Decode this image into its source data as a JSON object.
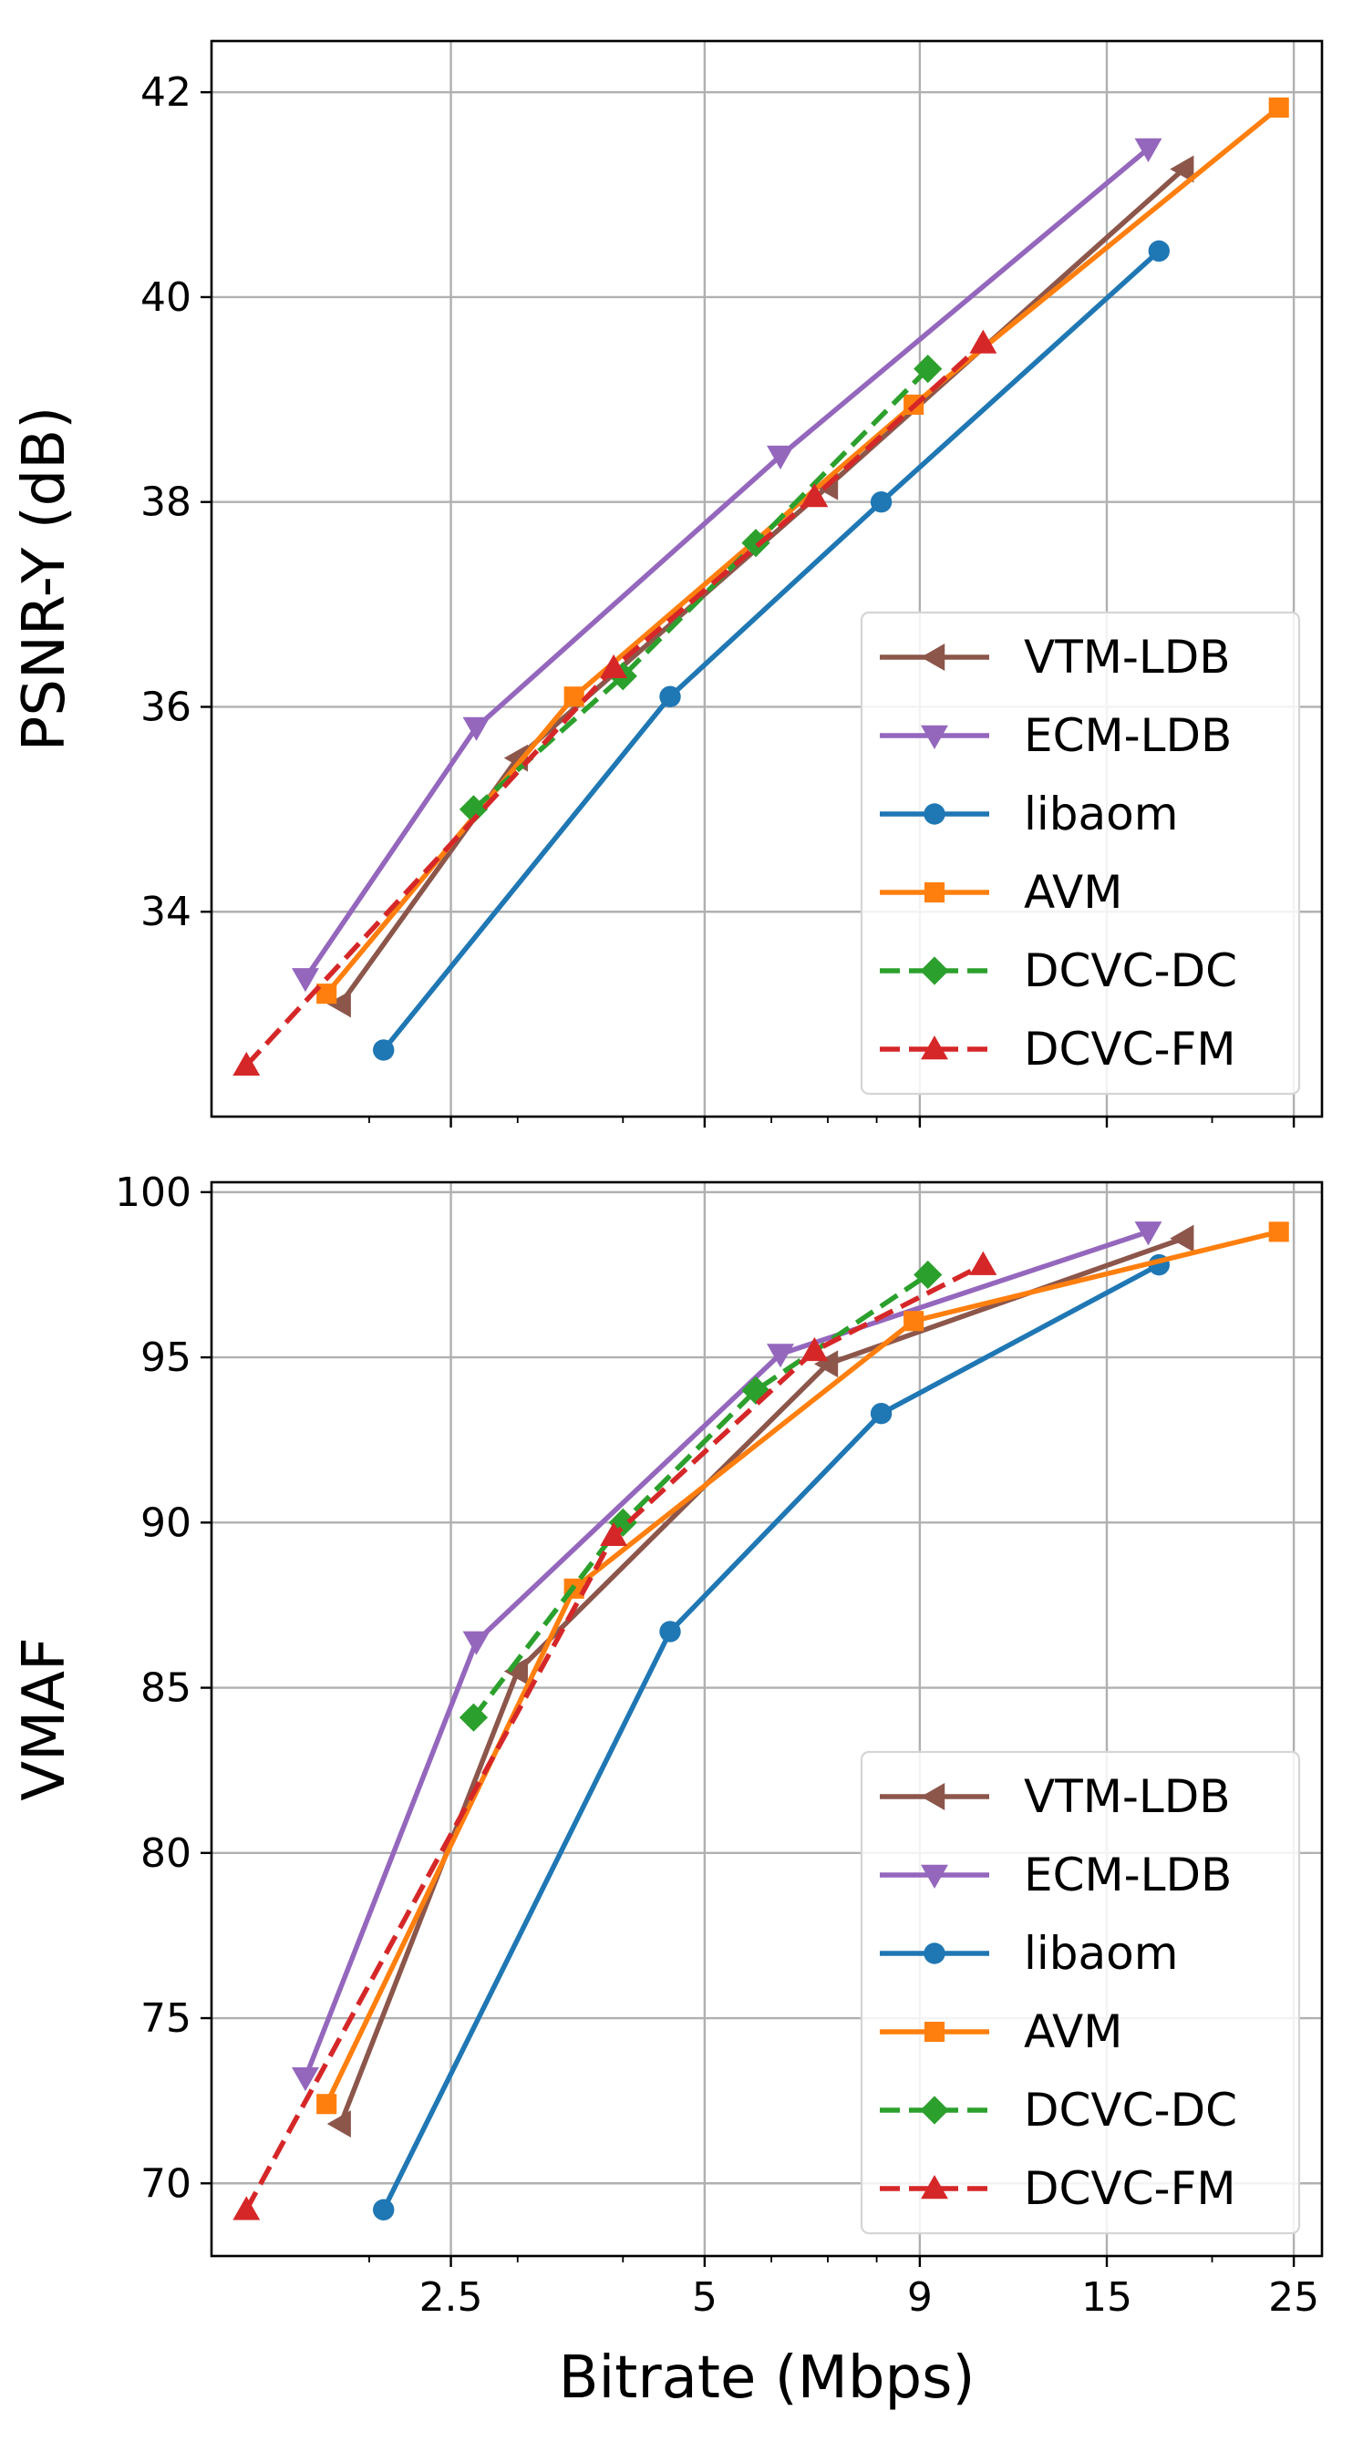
{
  "chart_data": [
    {
      "type": "line",
      "id": "psnr",
      "ylabel": "PSNR-Y (dB)",
      "xlabel": "",
      "xscale": "log",
      "xlim": [
        1.3,
        27
      ],
      "ylim": [
        32.0,
        42.5
      ],
      "yticks": [
        34,
        36,
        38,
        40,
        42
      ],
      "xticks": [
        2.5,
        5,
        9,
        15,
        25
      ],
      "grid": true,
      "legend_position": "lower-right",
      "series": [
        {
          "name": "VTM-LDB",
          "color": "#8c564b",
          "marker": "triangle-left",
          "dash": "solid",
          "x": [
            1.85,
            3.0,
            7.0,
            18.5
          ],
          "y": [
            33.1,
            35.5,
            38.15,
            41.25
          ]
        },
        {
          "name": "ECM-LDB",
          "color": "#9467bd",
          "marker": "triangle-down",
          "dash": "solid",
          "x": [
            1.68,
            2.68,
            6.15,
            16.8
          ],
          "y": [
            33.35,
            35.8,
            38.45,
            41.45
          ]
        },
        {
          "name": "libaom",
          "color": "#1f77b4",
          "marker": "circle",
          "dash": "solid",
          "x": [
            2.08,
            4.55,
            8.1,
            17.3
          ],
          "y": [
            32.65,
            36.1,
            38.0,
            40.45
          ]
        },
        {
          "name": "AVM",
          "color": "#ff7f0e",
          "marker": "square",
          "dash": "solid",
          "x": [
            1.78,
            3.5,
            8.85,
            24.0
          ],
          "y": [
            33.2,
            36.1,
            38.95,
            41.85
          ]
        },
        {
          "name": "DCVC-DC",
          "color": "#2ca02c",
          "marker": "diamond",
          "dash": "dashed",
          "x": [
            2.66,
            4.0,
            5.75,
            9.2
          ],
          "y": [
            35.0,
            36.3,
            37.6,
            39.3
          ]
        },
        {
          "name": "DCVC-FM",
          "color": "#d62728",
          "marker": "triangle-up",
          "dash": "dashed",
          "x": [
            1.43,
            3.9,
            6.75,
            10.7
          ],
          "y": [
            32.5,
            36.38,
            38.05,
            39.55
          ]
        }
      ]
    },
    {
      "type": "line",
      "id": "vmaf",
      "ylabel": "VMAF",
      "xlabel": "Bitrate (Mbps)",
      "xscale": "log",
      "xlim": [
        1.3,
        27
      ],
      "ylim": [
        67.8,
        100.3
      ],
      "yticks": [
        70,
        75,
        80,
        85,
        90,
        95,
        100
      ],
      "xticks": [
        2.5,
        5,
        9,
        15,
        25
      ],
      "xticklabels": [
        "2.5",
        "5",
        "9",
        "15",
        "25"
      ],
      "grid": true,
      "legend_position": "lower-right",
      "series": [
        {
          "name": "VTM-LDB",
          "color": "#8c564b",
          "marker": "triangle-left",
          "dash": "solid",
          "x": [
            1.85,
            3.0,
            7.0,
            18.5
          ],
          "y": [
            71.8,
            85.5,
            94.8,
            98.6
          ]
        },
        {
          "name": "ECM-LDB",
          "color": "#9467bd",
          "marker": "triangle-down",
          "dash": "solid",
          "x": [
            1.68,
            2.68,
            6.15,
            16.8
          ],
          "y": [
            73.2,
            86.4,
            95.1,
            98.8
          ]
        },
        {
          "name": "libaom",
          "color": "#1f77b4",
          "marker": "circle",
          "dash": "solid",
          "x": [
            2.08,
            4.55,
            8.1,
            17.3
          ],
          "y": [
            69.2,
            86.7,
            93.3,
            97.8
          ]
        },
        {
          "name": "AVM",
          "color": "#ff7f0e",
          "marker": "square",
          "dash": "solid",
          "x": [
            1.78,
            3.5,
            8.85,
            24.0
          ],
          "y": [
            72.4,
            88.0,
            96.1,
            98.8
          ]
        },
        {
          "name": "DCVC-DC",
          "color": "#2ca02c",
          "marker": "diamond",
          "dash": "dashed",
          "x": [
            2.66,
            4.0,
            5.75,
            9.2
          ],
          "y": [
            84.1,
            90.0,
            94.0,
            97.5
          ]
        },
        {
          "name": "DCVC-FM",
          "color": "#d62728",
          "marker": "triangle-up",
          "dash": "dashed",
          "x": [
            1.43,
            3.9,
            6.75,
            10.7
          ],
          "y": [
            69.2,
            89.6,
            95.2,
            97.8
          ]
        }
      ]
    }
  ]
}
